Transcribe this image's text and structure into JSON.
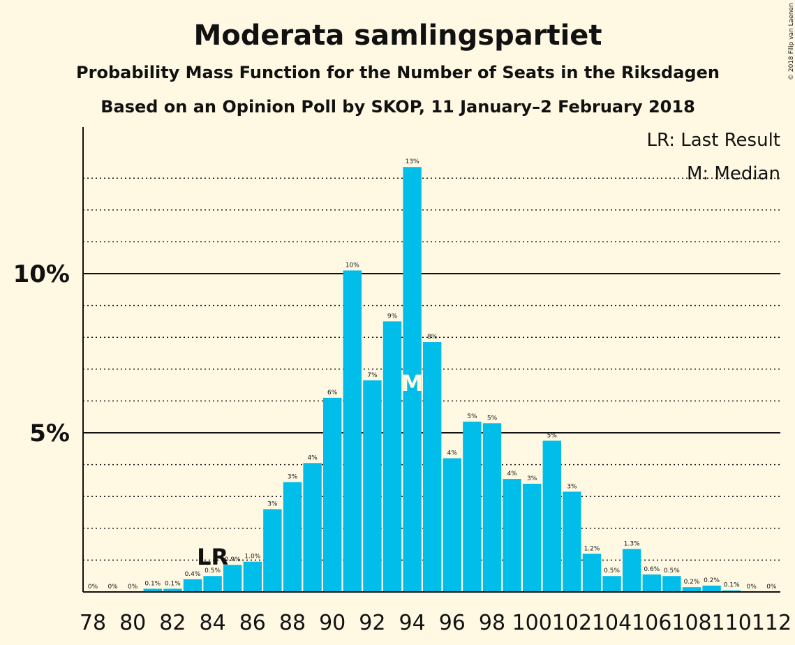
{
  "copyright": "© 2018 Filip van Laenen",
  "colors": {
    "background": "#FFF9E3",
    "bar": "#00BDEA",
    "text": "#111111",
    "median_marker": "#FFF9E3"
  },
  "chart_data": {
    "type": "bar",
    "title": "Moderata samlingspartiet",
    "subtitle": "Probability Mass Function for the Number of Seats in the Riksdagen",
    "subtitle2": "Based on an Opinion Poll by SKOP, 11 January–2 February 2018",
    "ylim": [
      0,
      14.5
    ],
    "yticks": [
      {
        "value": 5,
        "label": "5%"
      },
      {
        "value": 10,
        "label": "10%"
      }
    ],
    "grid": "dotted every 1%, solid at 5% and 10%",
    "x": [
      78,
      79,
      80,
      81,
      82,
      83,
      84,
      85,
      86,
      87,
      88,
      89,
      90,
      91,
      92,
      93,
      94,
      95,
      96,
      97,
      98,
      99,
      100,
      101,
      102,
      103,
      104,
      105,
      106,
      107,
      108,
      109,
      110,
      111,
      112
    ],
    "xtick_labels": [
      "78",
      "80",
      "82",
      "84",
      "86",
      "88",
      "90",
      "92",
      "94",
      "96",
      "98",
      "100",
      "102",
      "104",
      "106",
      "108",
      "110",
      "112"
    ],
    "values": [
      0,
      0,
      0,
      0.1,
      0.1,
      0.4,
      0.5,
      0.85,
      0.95,
      2.6,
      3.45,
      4.05,
      6.1,
      10.1,
      6.65,
      8.5,
      13.35,
      7.85,
      4.2,
      5.35,
      5.3,
      3.55,
      3.4,
      4.75,
      3.15,
      1.2,
      0.5,
      1.35,
      0.55,
      0.5,
      0.15,
      0.2,
      0.05,
      0,
      0
    ],
    "labels": [
      "0%",
      "0%",
      "0%",
      "0.1%",
      "0.1%",
      "0.4%",
      "0.5%",
      "0.9%",
      "1.0%",
      "3%",
      "3%",
      "4%",
      "6%",
      "10%",
      "7%",
      "9%",
      "13%",
      "8%",
      "4%",
      "5%",
      "5%",
      "4%",
      "3%",
      "5%",
      "3%",
      "1.2%",
      "0.5%",
      "1.3%",
      "0.6%",
      "0.5%",
      "0.2%",
      "0.2%",
      "0.1%",
      "0%",
      "0%"
    ],
    "last_result": {
      "seat": 84,
      "label": "LR"
    },
    "median": {
      "seat": 94,
      "label": "M"
    },
    "legend": {
      "placement": "top-right",
      "entries": [
        "LR: Last Result",
        "M: Median"
      ]
    }
  }
}
